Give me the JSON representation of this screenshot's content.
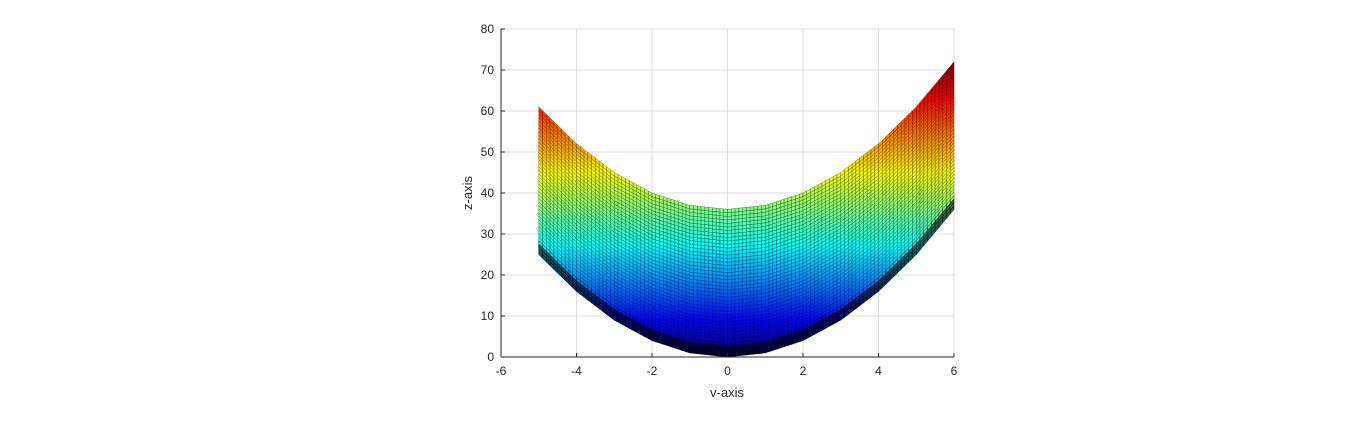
{
  "chart_data": {
    "type": "surface",
    "view": "side projection onto v-z plane",
    "xlabel": "v-axis",
    "ylabel": "z-axis",
    "xlim": [
      -6,
      6
    ],
    "ylim": [
      0,
      80
    ],
    "xticks": [
      -6,
      -4,
      -2,
      0,
      2,
      4,
      6
    ],
    "yticks": [
      0,
      10,
      20,
      30,
      40,
      50,
      60,
      70,
      80
    ],
    "grid": true,
    "colormap": "jet",
    "v_range": [
      -5,
      6
    ],
    "v_samples": [
      -5,
      -4,
      -3,
      -2,
      -1,
      0,
      1,
      2,
      3,
      4,
      5,
      6
    ],
    "upper_edge_z": [
      61,
      52,
      45,
      40,
      37,
      36,
      37,
      40,
      45,
      52,
      61,
      72
    ],
    "lower_edge_z": [
      25,
      16,
      9,
      4,
      1,
      0,
      1,
      4,
      9,
      16,
      25,
      36
    ],
    "colors": {
      "axis": "#262626",
      "grid": "#dcdcdc",
      "mesh_line": "#000000"
    }
  }
}
